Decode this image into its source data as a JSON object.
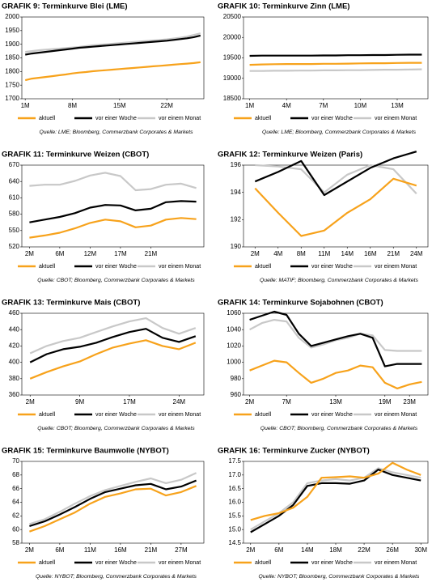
{
  "chart_data": [
    {
      "type": "line",
      "title": "GRAFIK 9: Terminkurve Blei (LME)",
      "source": "Quelle: LME; Bloomberg, Commerzbank Corporates & Markets",
      "categories": [
        "1M",
        null,
        null,
        null,
        null,
        null,
        null,
        "8M",
        null,
        null,
        null,
        null,
        null,
        null,
        "15M",
        null,
        null,
        null,
        null,
        null,
        null,
        "22M",
        null,
        null,
        null,
        null,
        null
      ],
      "series": [
        {
          "name": "aktuell",
          "color": "#f7a21b",
          "values": [
            1768,
            1774,
            1777,
            1780,
            1783,
            1786,
            1789,
            1793,
            1796,
            1798,
            1801,
            1803,
            1805,
            1807,
            1809,
            1811,
            1813,
            1815,
            1817,
            1819,
            1821,
            1823,
            1825,
            1827,
            1829,
            1831,
            1834
          ]
        },
        {
          "name": "vor einer Woche",
          "color": "#000000",
          "values": [
            1862,
            1866,
            1869,
            1872,
            1875,
            1878,
            1881,
            1884,
            1887,
            1889,
            1891,
            1893,
            1895,
            1897,
            1899,
            1901,
            1903,
            1905,
            1907,
            1909,
            1911,
            1913,
            1916,
            1919,
            1922,
            1926,
            1932
          ]
        },
        {
          "name": "vor einem Monat",
          "color": "#c8c8c8",
          "values": [
            1872,
            1875,
            1878,
            1880,
            1882,
            1884,
            1886,
            1888,
            1890,
            1893,
            1896,
            1898,
            1900,
            1902,
            1904,
            1906,
            1908,
            1910,
            1912,
            1914,
            1916,
            1918,
            1921,
            1924,
            1928,
            1934,
            1940
          ]
        }
      ],
      "ylim": [
        1700,
        2000
      ],
      "yticks": [
        1700,
        1750,
        1800,
        1850,
        1900,
        1950,
        2000
      ]
    },
    {
      "type": "line",
      "title": "GRAFIK 10: Terminkurve Zinn (LME)",
      "source": "Quelle: LME; Bloomberg, Commerzbank Corporates & Markets",
      "categories": [
        "1M",
        null,
        null,
        "4M",
        null,
        null,
        "7M",
        null,
        null,
        "10M",
        null,
        null,
        "13M",
        null,
        null
      ],
      "series": [
        {
          "name": "aktuell",
          "color": "#f7a21b",
          "values": [
            19330,
            19340,
            19345,
            19350,
            19350,
            19350,
            19355,
            19355,
            19360,
            19365,
            19370,
            19370,
            19375,
            19380,
            19380
          ]
        },
        {
          "name": "vor einer Woche",
          "color": "#000000",
          "values": [
            19550,
            19555,
            19555,
            19555,
            19555,
            19555,
            19560,
            19560,
            19565,
            19565,
            19570,
            19570,
            19575,
            19580,
            19580
          ]
        },
        {
          "name": "vor einem Monat",
          "color": "#c8c8c8",
          "values": [
            19180,
            19180,
            19185,
            19185,
            19190,
            19190,
            19195,
            19195,
            19200,
            19200,
            19205,
            19210,
            19210,
            19215,
            19220
          ]
        }
      ],
      "ylim": [
        18500,
        20500
      ],
      "yticks": [
        18500,
        19000,
        19500,
        20000,
        20500
      ]
    },
    {
      "type": "line",
      "title": "GRAFIK 11: Terminkurve Weizen (CBOT)",
      "source": "Quelle: CBOT; Bloomberg, Commerzbank Corporates & Markets",
      "categories": [
        "2M",
        null,
        "6M",
        null,
        "12M",
        null,
        "17M",
        null,
        "21M",
        null,
        null,
        null
      ],
      "series": [
        {
          "name": "aktuell",
          "color": "#f7a21b",
          "values": [
            537,
            541,
            546,
            554,
            564,
            570,
            567,
            556,
            559,
            570,
            573,
            571
          ]
        },
        {
          "name": "vor einer Woche",
          "color": "#000000",
          "values": [
            565,
            570,
            575,
            582,
            592,
            597,
            596,
            587,
            590,
            602,
            604,
            603
          ]
        },
        {
          "name": "vor einem Monat",
          "color": "#c8c8c8",
          "values": [
            632,
            634,
            634,
            641,
            651,
            656,
            650,
            624,
            626,
            634,
            636,
            628
          ]
        }
      ],
      "ylim": [
        520,
        670
      ],
      "yticks": [
        520,
        550,
        580,
        610,
        640,
        670
      ]
    },
    {
      "type": "line",
      "title": "GRAFIK 12: Terminkurve Weizen (Paris)",
      "source": "Quelle: MATIF; Bloomberg, Commerzbank Corporates & Markets",
      "categories": [
        "2M",
        "4M",
        "8M",
        "11M",
        "14M",
        "16M",
        "21M",
        "24M"
      ],
      "series": [
        {
          "name": "aktuell",
          "color": "#f7a21b",
          "values": [
            194.3,
            192.5,
            190.8,
            191.2,
            192.5,
            193.5,
            195,
            194.5
          ]
        },
        {
          "name": "vor einer Woche",
          "color": "#000000",
          "values": [
            194.8,
            195.5,
            196.3,
            193.8,
            194.8,
            195.8,
            196.5,
            197
          ]
        },
        {
          "name": "vor einem Monat",
          "color": "#c8c8c8",
          "values": [
            196,
            195.9,
            195.7,
            194,
            195.3,
            196,
            195.7,
            193.9
          ]
        }
      ],
      "ylim": [
        190,
        196
      ],
      "yticks": [
        190,
        192,
        194,
        196
      ]
    },
    {
      "type": "line",
      "title": "GRAFIK 13: Terminkurve Mais (CBOT)",
      "source": "Quelle: CBOT; Bloomberg, Commerzbank Corporates & Markets",
      "categories": [
        "2M",
        null,
        null,
        "9M",
        null,
        null,
        "17M",
        null,
        null,
        "24M",
        null
      ],
      "series": [
        {
          "name": "aktuell",
          "color": "#f7a21b",
          "values": [
            380,
            388,
            395,
            401,
            410,
            418,
            423,
            427,
            420,
            416,
            424
          ]
        },
        {
          "name": "vor einer Woche",
          "color": "#000000",
          "values": [
            400,
            410,
            416,
            419,
            424,
            431,
            437,
            441,
            430,
            425,
            432
          ]
        },
        {
          "name": "vor einem Monat",
          "color": "#c8c8c8",
          "values": [
            411,
            420,
            426,
            430,
            437,
            444,
            450,
            454,
            442,
            435,
            442
          ]
        }
      ],
      "ylim": [
        360,
        460
      ],
      "yticks": [
        360,
        380,
        400,
        420,
        440,
        460
      ]
    },
    {
      "type": "line",
      "title": "GRAFIK 14: Terminkurve Sojabohnen (CBOT)",
      "source": "Quelle: CBOT; Bloomberg, Commerzbank Corporates & Markets",
      "categories": [
        "2M",
        null,
        null,
        "7M",
        null,
        null,
        null,
        "13M",
        null,
        null,
        null,
        "19M",
        null,
        "23M",
        null
      ],
      "series": [
        {
          "name": "aktuell",
          "color": "#f7a21b",
          "values": [
            990,
            996,
            1002,
            1000,
            987,
            975,
            980,
            987,
            990,
            996,
            994,
            975,
            968,
            973,
            976
          ]
        },
        {
          "name": "vor einer Woche",
          "color": "#000000",
          "values": [
            1052,
            1057,
            1062,
            1058,
            1035,
            1020,
            1024,
            1028,
            1032,
            1035,
            1030,
            995,
            998,
            998,
            998
          ]
        },
        {
          "name": "vor einem Monat",
          "color": "#c8c8c8",
          "values": [
            1040,
            1048,
            1052,
            1050,
            1030,
            1018,
            1022,
            1027,
            1030,
            1035,
            1033,
            1015,
            1014,
            1014,
            1014
          ]
        }
      ],
      "ylim": [
        960,
        1060
      ],
      "yticks": [
        960,
        980,
        1000,
        1020,
        1040,
        1060
      ]
    },
    {
      "type": "line",
      "title": "GRAFIK 15: Terminkurve Baumwolle (NYBOT)",
      "source": "Quelle: NYBOT; Bloomberg, Commerzbank Corporates & Markets",
      "categories": [
        "2M",
        null,
        "6M",
        null,
        "11M",
        null,
        "16M",
        null,
        "21M",
        null,
        "27M",
        null
      ],
      "series": [
        {
          "name": "aktuell",
          "color": "#f7a21b",
          "values": [
            59.7,
            60.5,
            61.5,
            62.5,
            63.8,
            64.8,
            65.3,
            65.9,
            66,
            65,
            65.5,
            66.4
          ]
        },
        {
          "name": "vor einer Woche",
          "color": "#000000",
          "values": [
            60.5,
            61.2,
            62.2,
            63.3,
            64.5,
            65.5,
            66,
            66.5,
            66.7,
            65.9,
            66.3,
            67.2
          ]
        },
        {
          "name": "vor einem Monat",
          "color": "#c8c8c8",
          "values": [
            60.8,
            61.5,
            62.6,
            63.8,
            64.9,
            65.8,
            66.4,
            67,
            67.5,
            66.8,
            67.3,
            68.3
          ]
        }
      ],
      "ylim": [
        58,
        70
      ],
      "yticks": [
        58,
        60,
        62,
        64,
        66,
        68,
        70
      ]
    },
    {
      "type": "line",
      "title": "GRAFIK 16: Terminkurve Zucker (NYBOT)",
      "source": "Quelle: NYBOT; Bloomberg, Commerzbank Corporates & Markets",
      "categories": [
        "2M",
        null,
        "6M",
        null,
        "14M",
        null,
        "18M",
        null,
        "22M",
        null,
        "26M",
        null,
        "30M"
      ],
      "series": [
        {
          "name": "aktuell",
          "color": "#f7a21b",
          "values": [
            15.35,
            15.5,
            15.6,
            15.8,
            16.2,
            16.9,
            16.92,
            16.95,
            16.9,
            17.05,
            17.45,
            17.2,
            17.0
          ]
        },
        {
          "name": "vor einer Woche",
          "color": "#000000",
          "values": [
            14.9,
            15.2,
            15.5,
            15.9,
            16.6,
            16.7,
            16.7,
            16.68,
            16.8,
            17.2,
            17.0,
            16.9,
            16.8
          ]
        },
        {
          "name": "vor einem Monat",
          "color": "#c8c8c8",
          "values": [
            15.0,
            15.3,
            15.6,
            16.0,
            16.7,
            16.8,
            16.85,
            16.8,
            16.9,
            17.25,
            17.1,
            17.0,
            16.9
          ]
        }
      ],
      "ylim": [
        14.5,
        17.5
      ],
      "yticks": [
        14.5,
        {
          "value": 15,
          "label": "15.0"
        },
        15.5,
        {
          "value": 16,
          "label": "16.0"
        },
        16.5,
        {
          "value": 17,
          "label": "17.0"
        },
        17.5
      ]
    }
  ]
}
